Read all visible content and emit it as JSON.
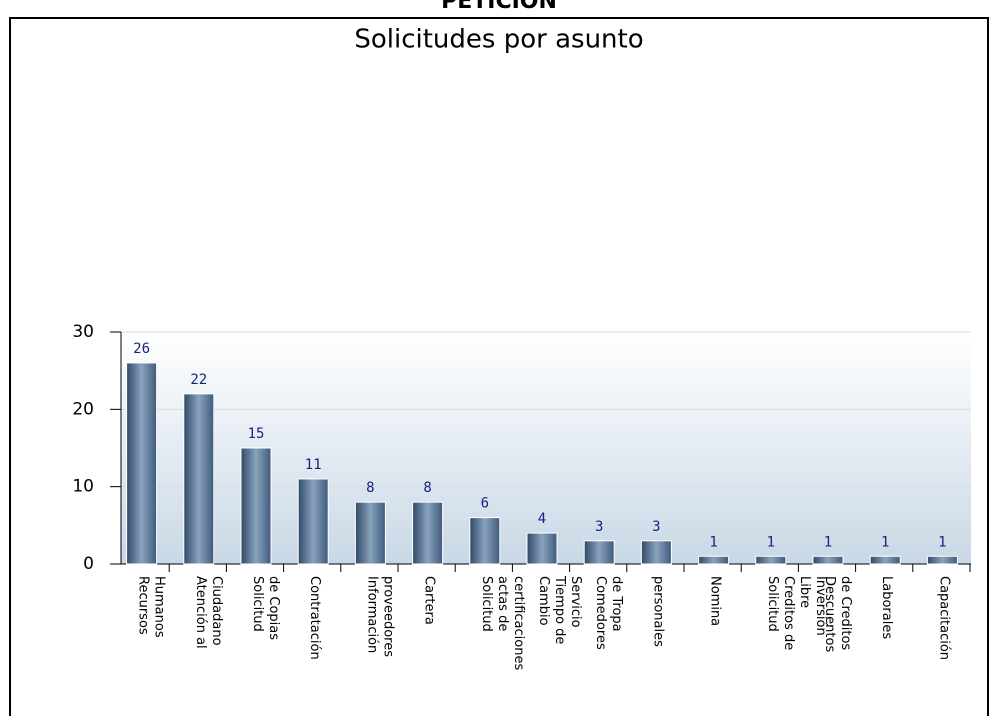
{
  "chart_data": {
    "type": "bar",
    "header": "PETICION",
    "title": "Solicitudes por asunto",
    "categories": [
      "Recursos Humanos",
      "Atención al Ciudadano",
      "Solicitud de Copias",
      "Contratación",
      "Información proveedores",
      "Cartera",
      "Solicitud actas de certificaciones",
      "Cambio Tiempo de Servicio",
      "Comedores de Tropa",
      "personales",
      "Nomina",
      "Solicitud Creditos de Libre Inversión",
      "Descuentos de Creditos",
      "Laborales",
      "Capacitación"
    ],
    "values": [
      26,
      22,
      15,
      11,
      8,
      8,
      6,
      4,
      3,
      3,
      1,
      1,
      1,
      1,
      1
    ],
    "color": "#4d6b8c",
    "ylim": [
      0,
      30
    ],
    "yticks": [
      0,
      10,
      20,
      30
    ],
    "grid": true
  }
}
